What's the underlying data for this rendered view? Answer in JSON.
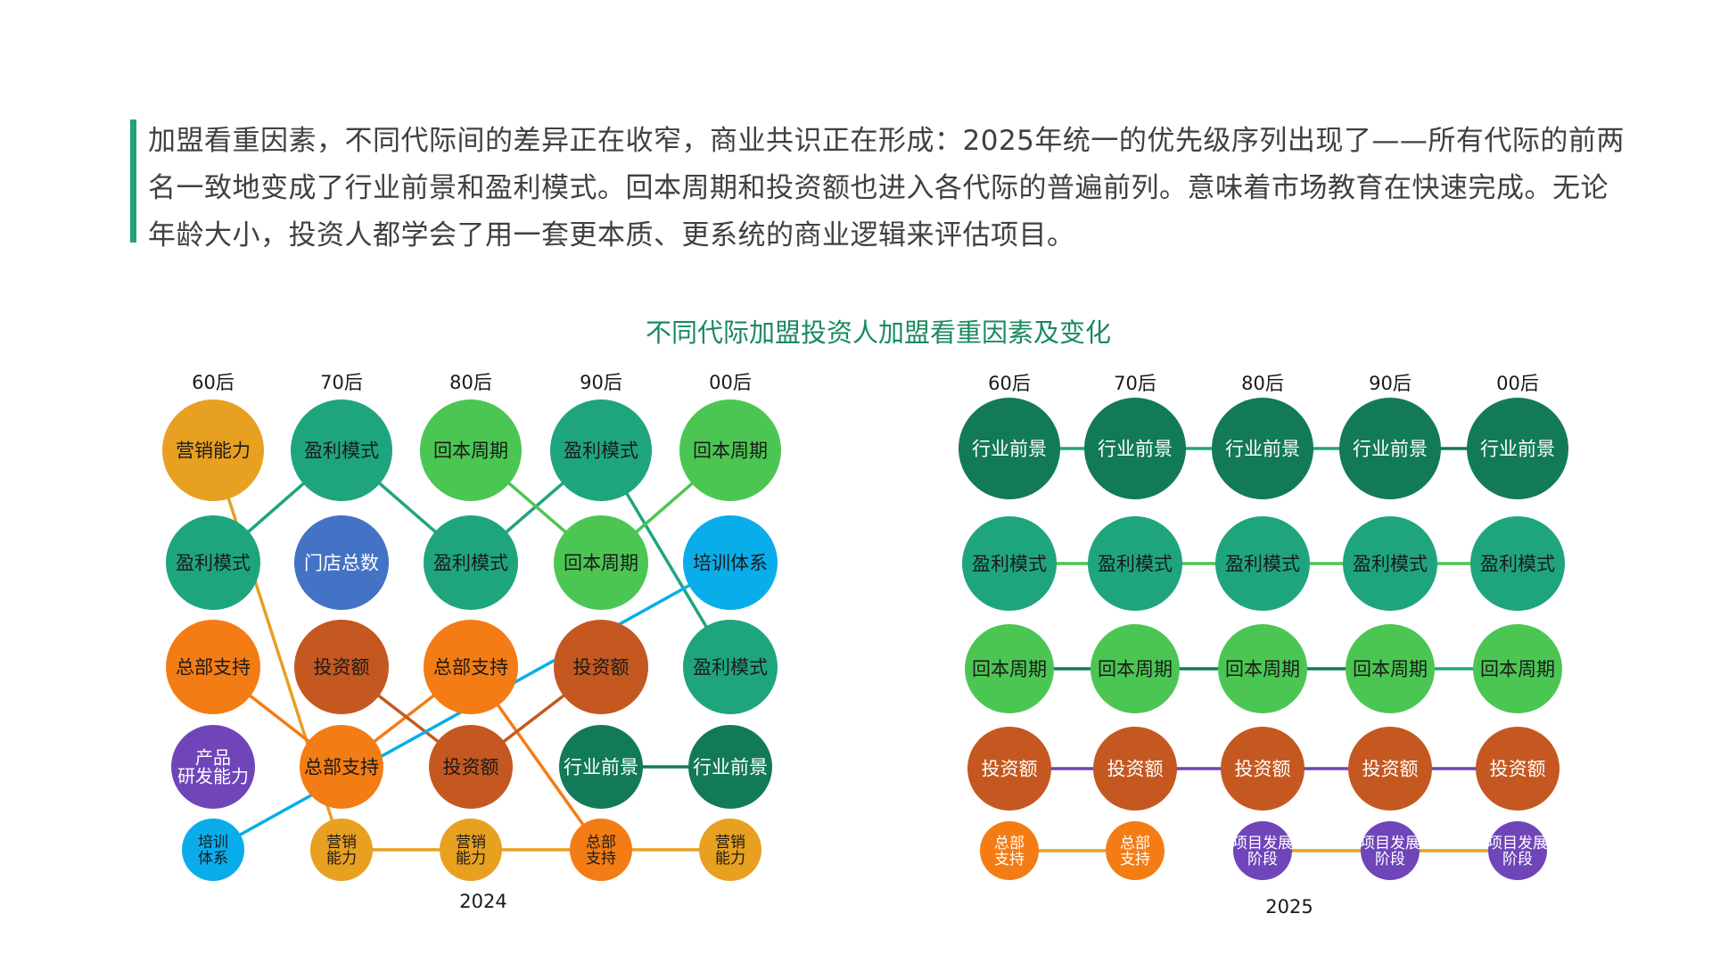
{
  "intro": {
    "text": "加盟看重因素，不同代际间的差异正在收窄，商业共识正在形成：2025年统一的优先级序列出现了——所有代际的前两名一致地变成了行业前景和盈利模式。回本周期和投资额也进入各代际的普遍前列。意味着市场教育在快速完成。无论年龄大小，投资人都学会了用一套更本质、更系统的商业逻辑来评估项目。"
  },
  "title": "不同代际加盟投资人加盟看重因素及变化",
  "colors": {
    "行业前景": "#127a58",
    "盈利模式": "#1fa57e",
    "回本周期": "#4cc653",
    "门店总数": "#4472c4",
    "培训体系": "#09adea",
    "总部支持": "#f47c14",
    "投资额": "#c45820",
    "营销能力": "#e8a021",
    "产品研发能力": "#6f45b9",
    "项目发展阶段": "#6f45b9"
  },
  "chart_data": [
    {
      "type": "table",
      "title": "2024",
      "generations": [
        "60后",
        "70后",
        "80后",
        "90后",
        "00后"
      ],
      "ranks": [
        [
          "营销能力",
          "盈利模式",
          "回本周期",
          "盈利模式",
          "回本周期"
        ],
        [
          "盈利模式",
          "门店总数",
          "盈利模式",
          "回本周期",
          "培训体系"
        ],
        [
          "总部支持",
          "投资额",
          "总部支持",
          "投资额",
          "盈利模式"
        ],
        [
          "产品研发能力",
          "总部支持",
          "投资额",
          "行业前景",
          "行业前景"
        ],
        [
          "培训体系",
          "营销能力",
          "营销能力",
          "总部支持",
          "营销能力"
        ]
      ]
    },
    {
      "type": "table",
      "title": "2025",
      "generations": [
        "60后",
        "70后",
        "80后",
        "90后",
        "00后"
      ],
      "ranks": [
        [
          "行业前景",
          "行业前景",
          "行业前景",
          "行业前景",
          "行业前景"
        ],
        [
          "盈利模式",
          "盈利模式",
          "盈利模式",
          "盈利模式",
          "盈利模式"
        ],
        [
          "回本周期",
          "回本周期",
          "回本周期",
          "回本周期",
          "回本周期"
        ],
        [
          "投资额",
          "投资额",
          "投资额",
          "投资额",
          "投资额"
        ],
        [
          "总部支持",
          "总部支持",
          "项目发展阶段",
          "项目发展阶段",
          "项目发展阶段"
        ]
      ]
    }
  ],
  "left_chart": {
    "year_label": "2024",
    "generation_labels": [
      "60后",
      "70后",
      "80后",
      "90后",
      "00后"
    ],
    "nodes": [
      {
        "label": "营销能力",
        "lines": [
          "营销能力"
        ],
        "col": 0,
        "row": 0,
        "fill": "#e8a021",
        "text": "#1a1a1a"
      },
      {
        "label": "盈利模式",
        "lines": [
          "盈利模式"
        ],
        "col": 1,
        "row": 0,
        "fill": "#1fa57e",
        "text": "#1a1a1a"
      },
      {
        "label": "回本周期",
        "lines": [
          "回本周期"
        ],
        "col": 2,
        "row": 0,
        "fill": "#4cc653",
        "text": "#1a1a1a"
      },
      {
        "label": "盈利模式",
        "lines": [
          "盈利模式"
        ],
        "col": 3,
        "row": 0,
        "fill": "#1fa57e",
        "text": "#1a1a1a"
      },
      {
        "label": "回本周期",
        "lines": [
          "回本周期"
        ],
        "col": 4,
        "row": 0,
        "fill": "#4cc653",
        "text": "#1a1a1a"
      },
      {
        "label": "盈利模式",
        "lines": [
          "盈利模式"
        ],
        "col": 0,
        "row": 1,
        "fill": "#1fa57e",
        "text": "#1a1a1a"
      },
      {
        "label": "门店总数",
        "lines": [
          "门店总数"
        ],
        "col": 1,
        "row": 1,
        "fill": "#4472c4",
        "text": "#ffffff"
      },
      {
        "label": "盈利模式",
        "lines": [
          "盈利模式"
        ],
        "col": 2,
        "row": 1,
        "fill": "#1fa57e",
        "text": "#1a1a1a"
      },
      {
        "label": "回本周期",
        "lines": [
          "回本周期"
        ],
        "col": 3,
        "row": 1,
        "fill": "#4cc653",
        "text": "#1a1a1a"
      },
      {
        "label": "培训体系",
        "lines": [
          "培训体系"
        ],
        "col": 4,
        "row": 1,
        "fill": "#09adea",
        "text": "#1a1a1a"
      },
      {
        "label": "总部支持",
        "lines": [
          "总部支持"
        ],
        "col": 0,
        "row": 2,
        "fill": "#f47c14",
        "text": "#1a1a1a"
      },
      {
        "label": "投资额",
        "lines": [
          "投资额"
        ],
        "col": 1,
        "row": 2,
        "fill": "#c45820",
        "text": "#1a1a1a"
      },
      {
        "label": "总部支持",
        "lines": [
          "总部支持"
        ],
        "col": 2,
        "row": 2,
        "fill": "#f47c14",
        "text": "#1a1a1a"
      },
      {
        "label": "投资额",
        "lines": [
          "投资额"
        ],
        "col": 3,
        "row": 2,
        "fill": "#c45820",
        "text": "#1a1a1a"
      },
      {
        "label": "盈利模式",
        "lines": [
          "盈利模式"
        ],
        "col": 4,
        "row": 2,
        "fill": "#1fa57e",
        "text": "#1a1a1a"
      },
      {
        "label": "产品研发能力",
        "lines": [
          "产品",
          "研发能力"
        ],
        "col": 0,
        "row": 3,
        "fill": "#6f45b9",
        "text": "#ffffff"
      },
      {
        "label": "总部支持",
        "lines": [
          "总部支持"
        ],
        "col": 1,
        "row": 3,
        "fill": "#f47c14",
        "text": "#1a1a1a"
      },
      {
        "label": "投资额",
        "lines": [
          "投资额"
        ],
        "col": 2,
        "row": 3,
        "fill": "#c45820",
        "text": "#1a1a1a"
      },
      {
        "label": "行业前景",
        "lines": [
          "行业前景"
        ],
        "col": 3,
        "row": 3,
        "fill": "#127a58",
        "text": "#ffffff"
      },
      {
        "label": "行业前景",
        "lines": [
          "行业前景"
        ],
        "col": 4,
        "row": 3,
        "fill": "#127a58",
        "text": "#ffffff"
      },
      {
        "label": "培训体系",
        "lines": [
          "培训",
          "体系"
        ],
        "col": 0,
        "row": 4,
        "fill": "#09adea",
        "text": "#1a1a1a"
      },
      {
        "label": "营销能力",
        "lines": [
          "营销",
          "能力"
        ],
        "col": 1,
        "row": 4,
        "fill": "#e8a021",
        "text": "#1a1a1a"
      },
      {
        "label": "营销能力",
        "lines": [
          "营销",
          "能力"
        ],
        "col": 2,
        "row": 4,
        "fill": "#e8a021",
        "text": "#1a1a1a"
      },
      {
        "label": "总部支持",
        "lines": [
          "总部",
          "支持"
        ],
        "col": 3,
        "row": 4,
        "fill": "#f47c14",
        "text": "#1a1a1a"
      },
      {
        "label": "营销能力",
        "lines": [
          "营销",
          "能力"
        ],
        "col": 4,
        "row": 4,
        "fill": "#e8a021",
        "text": "#1a1a1a"
      }
    ],
    "links": [
      {
        "from": [
          0,
          1
        ],
        "to": [
          1,
          0
        ],
        "color": "#1fa57e"
      },
      {
        "from": [
          1,
          0
        ],
        "to": [
          2,
          1
        ],
        "color": "#1fa57e"
      },
      {
        "from": [
          2,
          1
        ],
        "to": [
          3,
          0
        ],
        "color": "#1fa57e"
      },
      {
        "from": [
          3,
          0
        ],
        "to": [
          4,
          2
        ],
        "color": "#1fa57e"
      },
      {
        "from": [
          2,
          0
        ],
        "to": [
          3,
          1
        ],
        "color": "#4cc653"
      },
      {
        "from": [
          3,
          1
        ],
        "to": [
          4,
          0
        ],
        "color": "#4cc653"
      },
      {
        "from": [
          0,
          0
        ],
        "to": [
          1,
          4
        ],
        "color": "#e8a021"
      },
      {
        "from": [
          1,
          4
        ],
        "to": [
          2,
          4
        ],
        "color": "#e8a021"
      },
      {
        "from": [
          2,
          4
        ],
        "to": [
          3,
          4
        ],
        "color": "#e8a021"
      },
      {
        "from": [
          3,
          4
        ],
        "to": [
          4,
          4
        ],
        "color": "#e8a021"
      },
      {
        "from": [
          0,
          2
        ],
        "to": [
          1,
          3
        ],
        "color": "#f47c14"
      },
      {
        "from": [
          1,
          3
        ],
        "to": [
          2,
          2
        ],
        "color": "#f47c14"
      },
      {
        "from": [
          2,
          2
        ],
        "to": [
          3,
          4
        ],
        "color": "#f47c14"
      },
      {
        "from": [
          1,
          2
        ],
        "to": [
          2,
          3
        ],
        "color": "#c45820"
      },
      {
        "from": [
          2,
          3
        ],
        "to": [
          3,
          2
        ],
        "color": "#c45820"
      },
      {
        "from": [
          0,
          4
        ],
        "to": [
          4,
          1
        ],
        "color": "#09adea"
      },
      {
        "from": [
          3,
          3
        ],
        "to": [
          4,
          3
        ],
        "color": "#127a58"
      }
    ]
  },
  "right_chart": {
    "year_label": "2025",
    "generation_labels": [
      "60后",
      "70后",
      "80后",
      "90后",
      "00后"
    ],
    "nodes": [
      {
        "label": "行业前景",
        "lines": [
          "行业前景"
        ],
        "col": 0,
        "row": 0,
        "fill": "#127a58",
        "text": "#ffffff"
      },
      {
        "label": "行业前景",
        "lines": [
          "行业前景"
        ],
        "col": 1,
        "row": 0,
        "fill": "#127a58",
        "text": "#ffffff"
      },
      {
        "label": "行业前景",
        "lines": [
          "行业前景"
        ],
        "col": 2,
        "row": 0,
        "fill": "#127a58",
        "text": "#ffffff"
      },
      {
        "label": "行业前景",
        "lines": [
          "行业前景"
        ],
        "col": 3,
        "row": 0,
        "fill": "#127a58",
        "text": "#ffffff"
      },
      {
        "label": "行业前景",
        "lines": [
          "行业前景"
        ],
        "col": 4,
        "row": 0,
        "fill": "#127a58",
        "text": "#ffffff"
      },
      {
        "label": "盈利模式",
        "lines": [
          "盈利模式"
        ],
        "col": 0,
        "row": 1,
        "fill": "#1fa57e",
        "text": "#1a1a1a"
      },
      {
        "label": "盈利模式",
        "lines": [
          "盈利模式"
        ],
        "col": 1,
        "row": 1,
        "fill": "#1fa57e",
        "text": "#1a1a1a"
      },
      {
        "label": "盈利模式",
        "lines": [
          "盈利模式"
        ],
        "col": 2,
        "row": 1,
        "fill": "#1fa57e",
        "text": "#1a1a1a"
      },
      {
        "label": "盈利模式",
        "lines": [
          "盈利模式"
        ],
        "col": 3,
        "row": 1,
        "fill": "#1fa57e",
        "text": "#1a1a1a"
      },
      {
        "label": "盈利模式",
        "lines": [
          "盈利模式"
        ],
        "col": 4,
        "row": 1,
        "fill": "#1fa57e",
        "text": "#1a1a1a"
      },
      {
        "label": "回本周期",
        "lines": [
          "回本周期"
        ],
        "col": 0,
        "row": 2,
        "fill": "#4cc653",
        "text": "#1a1a1a"
      },
      {
        "label": "回本周期",
        "lines": [
          "回本周期"
        ],
        "col": 1,
        "row": 2,
        "fill": "#4cc653",
        "text": "#1a1a1a"
      },
      {
        "label": "回本周期",
        "lines": [
          "回本周期"
        ],
        "col": 2,
        "row": 2,
        "fill": "#4cc653",
        "text": "#1a1a1a"
      },
      {
        "label": "回本周期",
        "lines": [
          "回本周期"
        ],
        "col": 3,
        "row": 2,
        "fill": "#4cc653",
        "text": "#1a1a1a"
      },
      {
        "label": "回本周期",
        "lines": [
          "回本周期"
        ],
        "col": 4,
        "row": 2,
        "fill": "#4cc653",
        "text": "#1a1a1a"
      },
      {
        "label": "投资额",
        "lines": [
          "投资额"
        ],
        "col": 0,
        "row": 3,
        "fill": "#c45820",
        "text": "#ffffff"
      },
      {
        "label": "投资额",
        "lines": [
          "投资额"
        ],
        "col": 1,
        "row": 3,
        "fill": "#c45820",
        "text": "#ffffff"
      },
      {
        "label": "投资额",
        "lines": [
          "投资额"
        ],
        "col": 2,
        "row": 3,
        "fill": "#c45820",
        "text": "#ffffff"
      },
      {
        "label": "投资额",
        "lines": [
          "投资额"
        ],
        "col": 3,
        "row": 3,
        "fill": "#c45820",
        "text": "#ffffff"
      },
      {
        "label": "投资额",
        "lines": [
          "投资额"
        ],
        "col": 4,
        "row": 3,
        "fill": "#c45820",
        "text": "#ffffff"
      },
      {
        "label": "总部支持",
        "lines": [
          "总部",
          "支持"
        ],
        "col": 0,
        "row": 4,
        "fill": "#f47c14",
        "text": "#ffffff"
      },
      {
        "label": "总部支持",
        "lines": [
          "总部",
          "支持"
        ],
        "col": 1,
        "row": 4,
        "fill": "#f47c14",
        "text": "#ffffff"
      },
      {
        "label": "项目发展阶段",
        "lines": [
          "项目发展",
          "阶段"
        ],
        "col": 2,
        "row": 4,
        "fill": "#6f45b9",
        "text": "#ffffff"
      },
      {
        "label": "项目发展阶段",
        "lines": [
          "项目发展",
          "阶段"
        ],
        "col": 3,
        "row": 4,
        "fill": "#6f45b9",
        "text": "#ffffff"
      },
      {
        "label": "项目发展阶段",
        "lines": [
          "项目发展",
          "阶段"
        ],
        "col": 4,
        "row": 4,
        "fill": "#6f45b9",
        "text": "#ffffff"
      }
    ],
    "links": [
      {
        "from": [
          0,
          0
        ],
        "to": [
          1,
          0
        ],
        "color": "#1fa57e"
      },
      {
        "from": [
          1,
          0
        ],
        "to": [
          2,
          0
        ],
        "color": "#1fa57e"
      },
      {
        "from": [
          2,
          0
        ],
        "to": [
          3,
          0
        ],
        "color": "#1fa57e"
      },
      {
        "from": [
          3,
          0
        ],
        "to": [
          4,
          0
        ],
        "color": "#127a58"
      },
      {
        "from": [
          0,
          1
        ],
        "to": [
          1,
          1
        ],
        "color": "#4cc653"
      },
      {
        "from": [
          1,
          1
        ],
        "to": [
          2,
          1
        ],
        "color": "#4cc653"
      },
      {
        "from": [
          2,
          1
        ],
        "to": [
          3,
          1
        ],
        "color": "#4cc653"
      },
      {
        "from": [
          3,
          1
        ],
        "to": [
          4,
          1
        ],
        "color": "#4cc653"
      },
      {
        "from": [
          0,
          2
        ],
        "to": [
          1,
          2
        ],
        "color": "#127a58"
      },
      {
        "from": [
          1,
          2
        ],
        "to": [
          2,
          2
        ],
        "color": "#127a58"
      },
      {
        "from": [
          2,
          2
        ],
        "to": [
          3,
          2
        ],
        "color": "#127a58"
      },
      {
        "from": [
          3,
          2
        ],
        "to": [
          4,
          2
        ],
        "color": "#1fa57e"
      },
      {
        "from": [
          0,
          3
        ],
        "to": [
          1,
          3
        ],
        "color": "#6f45b9"
      },
      {
        "from": [
          1,
          3
        ],
        "to": [
          2,
          3
        ],
        "color": "#6f45b9"
      },
      {
        "from": [
          2,
          3
        ],
        "to": [
          3,
          3
        ],
        "color": "#6f45b9"
      },
      {
        "from": [
          3,
          3
        ],
        "to": [
          4,
          3
        ],
        "color": "#6f45b9"
      },
      {
        "from": [
          0,
          4
        ],
        "to": [
          1,
          4
        ],
        "color": "#e8a021"
      },
      {
        "from": [
          2,
          4
        ],
        "to": [
          3,
          4
        ],
        "color": "#e8a021"
      },
      {
        "from": [
          3,
          4
        ],
        "to": [
          4,
          4
        ],
        "color": "#e8a021"
      }
    ]
  }
}
